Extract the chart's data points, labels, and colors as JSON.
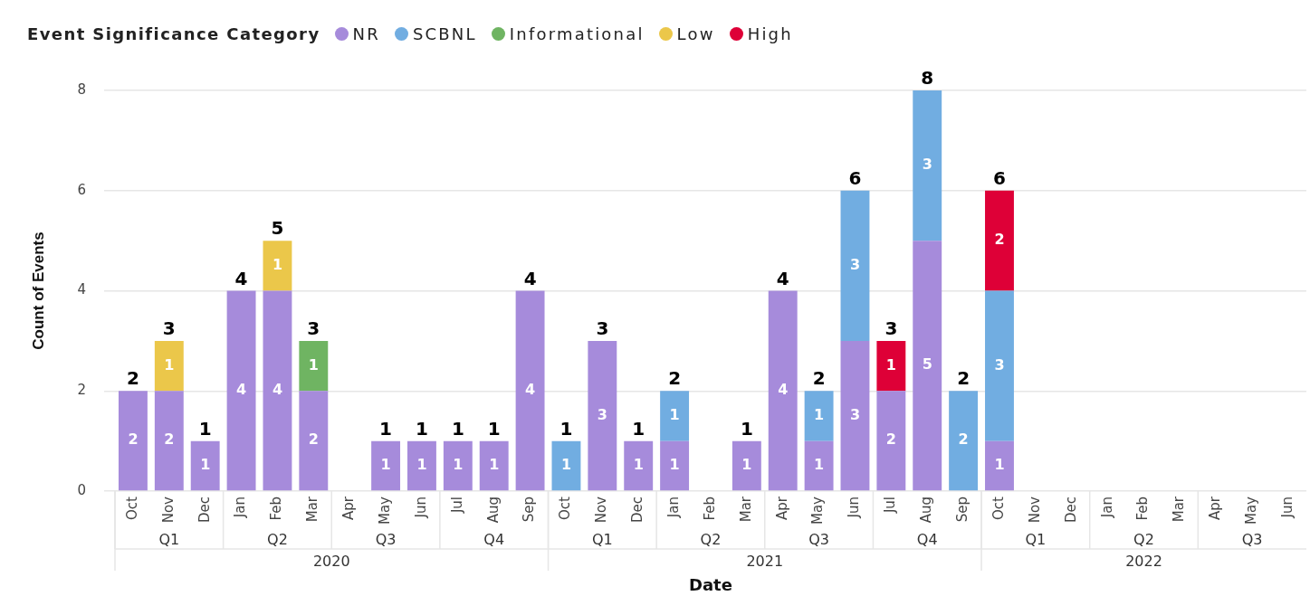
{
  "chart_data": {
    "type": "bar",
    "stacked": true,
    "xlabel": "Date",
    "ylabel": "Count of Events",
    "legend_title": "Event Significance Category",
    "categories": [
      "Oct",
      "Nov",
      "Dec",
      "Jan",
      "Feb",
      "Mar",
      "Apr",
      "May",
      "Jun",
      "Jul",
      "Aug",
      "Sep",
      "Oct",
      "Nov",
      "Dec",
      "Jan",
      "Feb",
      "Mar",
      "Apr",
      "May",
      "Jun",
      "Jul",
      "Aug",
      "Sep",
      "Oct",
      "Nov",
      "Dec",
      "Jan",
      "Feb",
      "Mar",
      "Apr",
      "May",
      "Jun"
    ],
    "series": [
      {
        "name": "NR",
        "color": "#a68bdb",
        "values": [
          2,
          2,
          1,
          4,
          4,
          2,
          null,
          1,
          1,
          1,
          1,
          4,
          null,
          3,
          1,
          1,
          null,
          1,
          4,
          1,
          3,
          2,
          5,
          null,
          1,
          null,
          null,
          null,
          null,
          null,
          null,
          null,
          null
        ]
      },
      {
        "name": "SCBNL",
        "color": "#71ade1",
        "values": [
          null,
          null,
          null,
          null,
          null,
          null,
          null,
          null,
          null,
          null,
          null,
          null,
          1,
          null,
          null,
          1,
          null,
          null,
          null,
          1,
          3,
          null,
          3,
          2,
          3,
          null,
          null,
          null,
          null,
          null,
          null,
          null,
          null
        ]
      },
      {
        "name": "Informational",
        "color": "#6fb462",
        "values": [
          null,
          null,
          null,
          null,
          null,
          1,
          null,
          null,
          null,
          null,
          null,
          null,
          null,
          null,
          null,
          null,
          null,
          null,
          null,
          null,
          null,
          null,
          null,
          null,
          null,
          null,
          null,
          null,
          null,
          null,
          null,
          null,
          null
        ]
      },
      {
        "name": "Low",
        "color": "#ebc74a",
        "values": [
          null,
          1,
          null,
          null,
          1,
          null,
          null,
          null,
          null,
          null,
          null,
          null,
          null,
          null,
          null,
          null,
          null,
          null,
          null,
          null,
          null,
          null,
          null,
          null,
          null,
          null,
          null,
          null,
          null,
          null,
          null,
          null,
          null
        ]
      },
      {
        "name": "High",
        "color": "#de0037",
        "values": [
          null,
          null,
          null,
          null,
          null,
          null,
          null,
          null,
          null,
          null,
          null,
          null,
          null,
          null,
          null,
          null,
          null,
          null,
          null,
          null,
          null,
          1,
          null,
          null,
          2,
          null,
          null,
          null,
          null,
          null,
          null,
          null,
          null
        ]
      }
    ],
    "totals": [
      "2",
      "3",
      "1",
      "4",
      "5",
      "3",
      null,
      "1",
      "1",
      "1",
      "1",
      "4",
      "1",
      "3",
      "1",
      "2",
      null,
      "1",
      "4",
      "2",
      "6",
      "3",
      "8",
      "2",
      "6",
      null,
      null,
      null,
      null,
      null,
      null,
      null,
      null
    ],
    "ylim": [
      0,
      8
    ],
    "yticks": [
      0,
      2,
      4,
      6,
      8
    ],
    "grid": "y",
    "legend": "top left",
    "data_labels": true,
    "annotations": [
      "Q1",
      "Q2",
      "Q3",
      "Q4",
      "Q1",
      "Q2",
      "Q3",
      "Q4",
      "Q1",
      "Q2",
      "Q3",
      "2020",
      "2021",
      "2022"
    ]
  }
}
